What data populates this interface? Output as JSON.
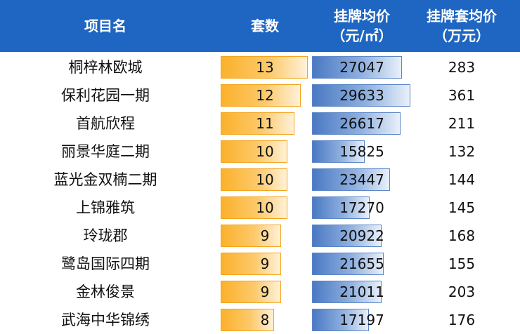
{
  "header": {
    "name_label": "项目名",
    "count_label": "套数",
    "price_label_line1": "挂牌均价",
    "price_label_line2": "（元/㎡）",
    "total_label_line1": "挂牌套均价",
    "total_label_line2": "（万元）"
  },
  "colors": {
    "header_bg": "#1f66c2",
    "count_bar": "#fbb12b",
    "price_bar": "#4a79c3"
  },
  "chart_data": {
    "type": "table",
    "columns": [
      "项目名",
      "套数",
      "挂牌均价（元/㎡）",
      "挂牌套均价（万元）"
    ],
    "rows": [
      {
        "name": "桐梓林欧城",
        "count": 13,
        "price": 27047,
        "total": 283
      },
      {
        "name": "保利花园一期",
        "count": 12,
        "price": 29633,
        "total": 361
      },
      {
        "name": "首航欣程",
        "count": 11,
        "price": 26617,
        "total": 211
      },
      {
        "name": "丽景华庭二期",
        "count": 10,
        "price": 15825,
        "total": 132
      },
      {
        "name": "蓝光金双楠二期",
        "count": 10,
        "price": 23447,
        "total": 144
      },
      {
        "name": "上锦雅筑",
        "count": 10,
        "price": 17270,
        "total": 145
      },
      {
        "name": "玲珑郡",
        "count": 9,
        "price": 20922,
        "total": 168
      },
      {
        "name": "鹭岛国际四期",
        "count": 9,
        "price": 21655,
        "total": 155
      },
      {
        "name": "金林俊景",
        "count": 9,
        "price": 21011,
        "total": 203
      },
      {
        "name": "武海中华锦绣",
        "count": 8,
        "price": 17197,
        "total": 176
      }
    ]
  }
}
